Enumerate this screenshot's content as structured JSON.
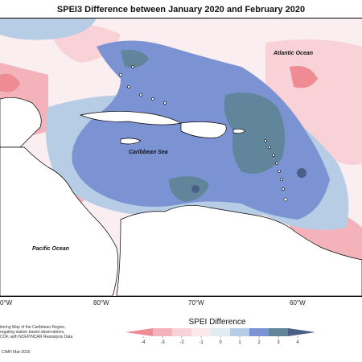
{
  "title": "SPEI3 Difference between January 2020 and February 2020",
  "places": {
    "atlantic": "Atlantic Ocean",
    "caribbean": "Caribbean Sea",
    "pacific": "Pacific Ocean"
  },
  "longitudes": [
    "0°W",
    "80°W",
    "70°W",
    "60°W"
  ],
  "legend": {
    "title": "SPEI Difference",
    "ticks": [
      "-4",
      "-3",
      "-2",
      "-1",
      "0",
      "1",
      "2",
      "3",
      "4"
    ],
    "colors": [
      "#ee8b93",
      "#f4b3ba",
      "#f9d2d8",
      "#fce8ec",
      "#dfecf1",
      "#b7cde6",
      "#7b93d2",
      "#61869b",
      "#4a5e86"
    ]
  },
  "credit": {
    "lines": [
      "itoring Map of the Caribbean Region,",
      "regating station based observations,",
      "COF, with NCEP/NCAR Reanalysis Data"
    ],
    "copyright": "CIMH Mar-2020"
  },
  "colors": {
    "water_blue": "#7b93d2",
    "deep_blue": "#4a5e86",
    "teal": "#61869b",
    "light_blue": "#b7cde6",
    "pink": "#f9d2d8",
    "salmon": "#ee8b93"
  }
}
